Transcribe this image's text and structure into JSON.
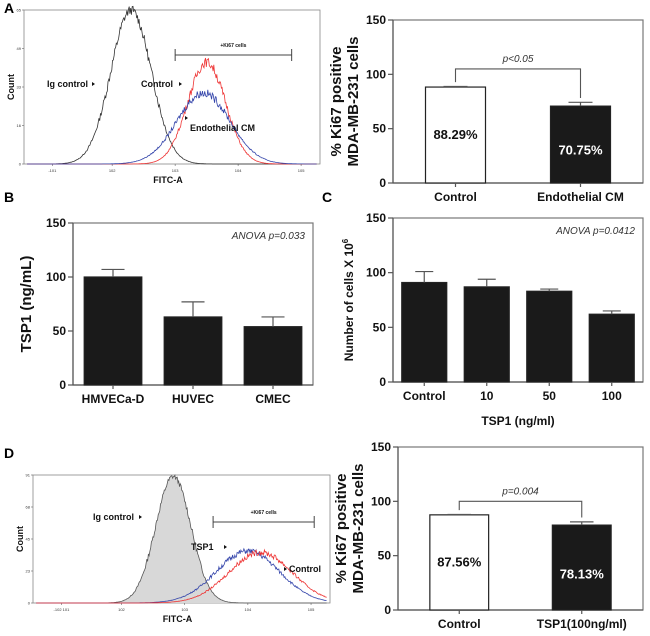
{
  "figure": {
    "panel_letters": [
      "A",
      "B",
      "C",
      "D"
    ]
  },
  "chart_data": [
    {
      "id": "A-histogram",
      "type": "line",
      "panel": "A",
      "title": "",
      "xlabel": "FITC-A",
      "ylabel": "Count",
      "x_scale": "log",
      "x_tick_labels": [
        "-10^1",
        "10^2",
        "10^3",
        "10^4",
        "10^5"
      ],
      "y_tick_labels": [
        "0",
        "16",
        "33",
        "49",
        "65"
      ],
      "ylim": [
        0,
        65
      ],
      "gate": {
        "label": "+Ki67 cells",
        "from_log": 3.0,
        "to_log": 4.85
      },
      "series": [
        {
          "name": "Ig control",
          "color": "#333333",
          "peak_log": 2.3,
          "peak": 65,
          "width": 0.32,
          "label": "Ig control"
        },
        {
          "name": "Control",
          "color": "#ee3333",
          "peak_log": 3.5,
          "peak": 43,
          "width": 0.3,
          "label": "Control"
        },
        {
          "name": "Endothelial CM",
          "color": "#3344aa",
          "peak_log": 3.45,
          "peak": 30,
          "width": 0.42,
          "label": "Endothelial CM"
        }
      ]
    },
    {
      "id": "A-bar",
      "type": "bar",
      "panel": "A",
      "categories": [
        "Control",
        "Endothelial CM"
      ],
      "values": [
        88.29,
        70.75
      ],
      "errors": [
        0.5,
        3.5
      ],
      "bar_colors": [
        "#ffffff",
        "#1a1a1a"
      ],
      "data_labels": [
        "88.29%",
        "70.75%"
      ],
      "ylabel_lines": [
        "% Ki67 positive",
        "MDA-MB-231 cells"
      ],
      "ylim": [
        0,
        150
      ],
      "y_ticks": [
        0,
        50,
        100,
        150
      ],
      "annotation": "p<0.05",
      "bracket_y": 105
    },
    {
      "id": "B-bar",
      "type": "bar",
      "panel": "B",
      "categories": [
        "HMVECa-D",
        "HUVEC",
        "CMEC"
      ],
      "values": [
        100,
        63,
        54
      ],
      "errors": [
        7,
        14,
        9
      ],
      "bar_colors": [
        "#1a1a1a",
        "#1a1a1a",
        "#1a1a1a"
      ],
      "ylabel_lines": [
        "TSP1 (ng/mL)"
      ],
      "xlabel": "",
      "ylim": [
        0,
        150
      ],
      "y_ticks": [
        0,
        50,
        100,
        150
      ],
      "annotation": "ANOVA p=0.033"
    },
    {
      "id": "C-bar",
      "type": "bar",
      "panel": "C",
      "categories": [
        "Control",
        "10",
        "50",
        "100"
      ],
      "values": [
        91,
        87,
        83,
        62
      ],
      "errors": [
        10,
        7,
        2,
        3
      ],
      "bar_colors": [
        "#1a1a1a",
        "#1a1a1a",
        "#1a1a1a",
        "#1a1a1a"
      ],
      "ylabel_lines": [
        "Number of cells X 10"
      ],
      "ylabel_superscript": "6",
      "xlabel": "TSP1 (ng/ml)",
      "ylim": [
        0,
        150
      ],
      "y_ticks": [
        0,
        50,
        100,
        150
      ],
      "annotation": "ANOVA p=0.0412"
    },
    {
      "id": "D-histogram",
      "type": "line",
      "panel": "D",
      "title": "",
      "xlabel": "FITC-A",
      "ylabel": "Count",
      "x_scale": "log",
      "x_tick_labels": [
        "-10^2 10^1",
        "10^2",
        "10^3",
        "10^4",
        "10^5"
      ],
      "y_tick_labels": [
        "0",
        "23",
        "45",
        "68",
        "91"
      ],
      "ylim": [
        0,
        91
      ],
      "gate": {
        "label": "+Ki67 cells",
        "from_log": 3.45,
        "to_log": 5.05
      },
      "series": [
        {
          "name": "Ig control",
          "color": "#555555",
          "peak_log": 2.82,
          "peak": 90,
          "width": 0.28,
          "filled": true,
          "label": "Ig control"
        },
        {
          "name": "TSP1",
          "color": "#3344aa",
          "peak_log": 4.0,
          "peak": 37,
          "width": 0.5,
          "label": "TSP1"
        },
        {
          "name": "Control",
          "color": "#ee3333",
          "peak_log": 4.2,
          "peak": 36,
          "width": 0.5,
          "label": "Control"
        }
      ]
    },
    {
      "id": "D-bar",
      "type": "bar",
      "panel": "D",
      "categories": [
        "Control",
        "TSP1(100ng/ml)"
      ],
      "values": [
        87.56,
        78.13
      ],
      "errors": [
        0.3,
        3
      ],
      "bar_colors": [
        "#ffffff",
        "#1a1a1a"
      ],
      "data_labels": [
        "87.56%",
        "78.13%"
      ],
      "ylabel_lines": [
        "% Ki67 positive",
        "MDA-MB-231 cells"
      ],
      "ylim": [
        0,
        150
      ],
      "y_ticks": [
        0,
        50,
        100,
        150
      ],
      "annotation": "p=0.004",
      "bracket_y": 100
    }
  ]
}
